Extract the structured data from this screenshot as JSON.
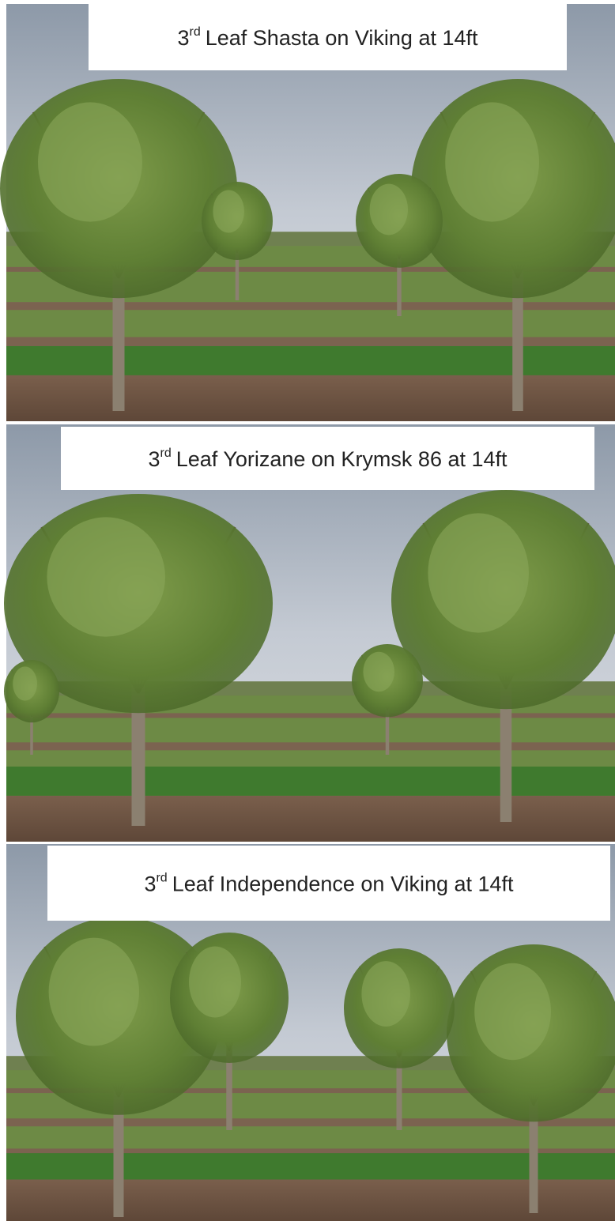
{
  "panels": [
    {
      "caption": {
        "number": "3",
        "superscript": "rd",
        "text": "Leaf Shasta on Viking at 14ft"
      }
    },
    {
      "caption": {
        "number": "3",
        "superscript": "rd",
        "text": "Leaf Yorizane on Krymsk 86 at 14ft"
      }
    },
    {
      "caption": {
        "number": "3",
        "superscript": "rd",
        "text": "Leaf Independence on Viking at 14ft"
      }
    }
  ]
}
